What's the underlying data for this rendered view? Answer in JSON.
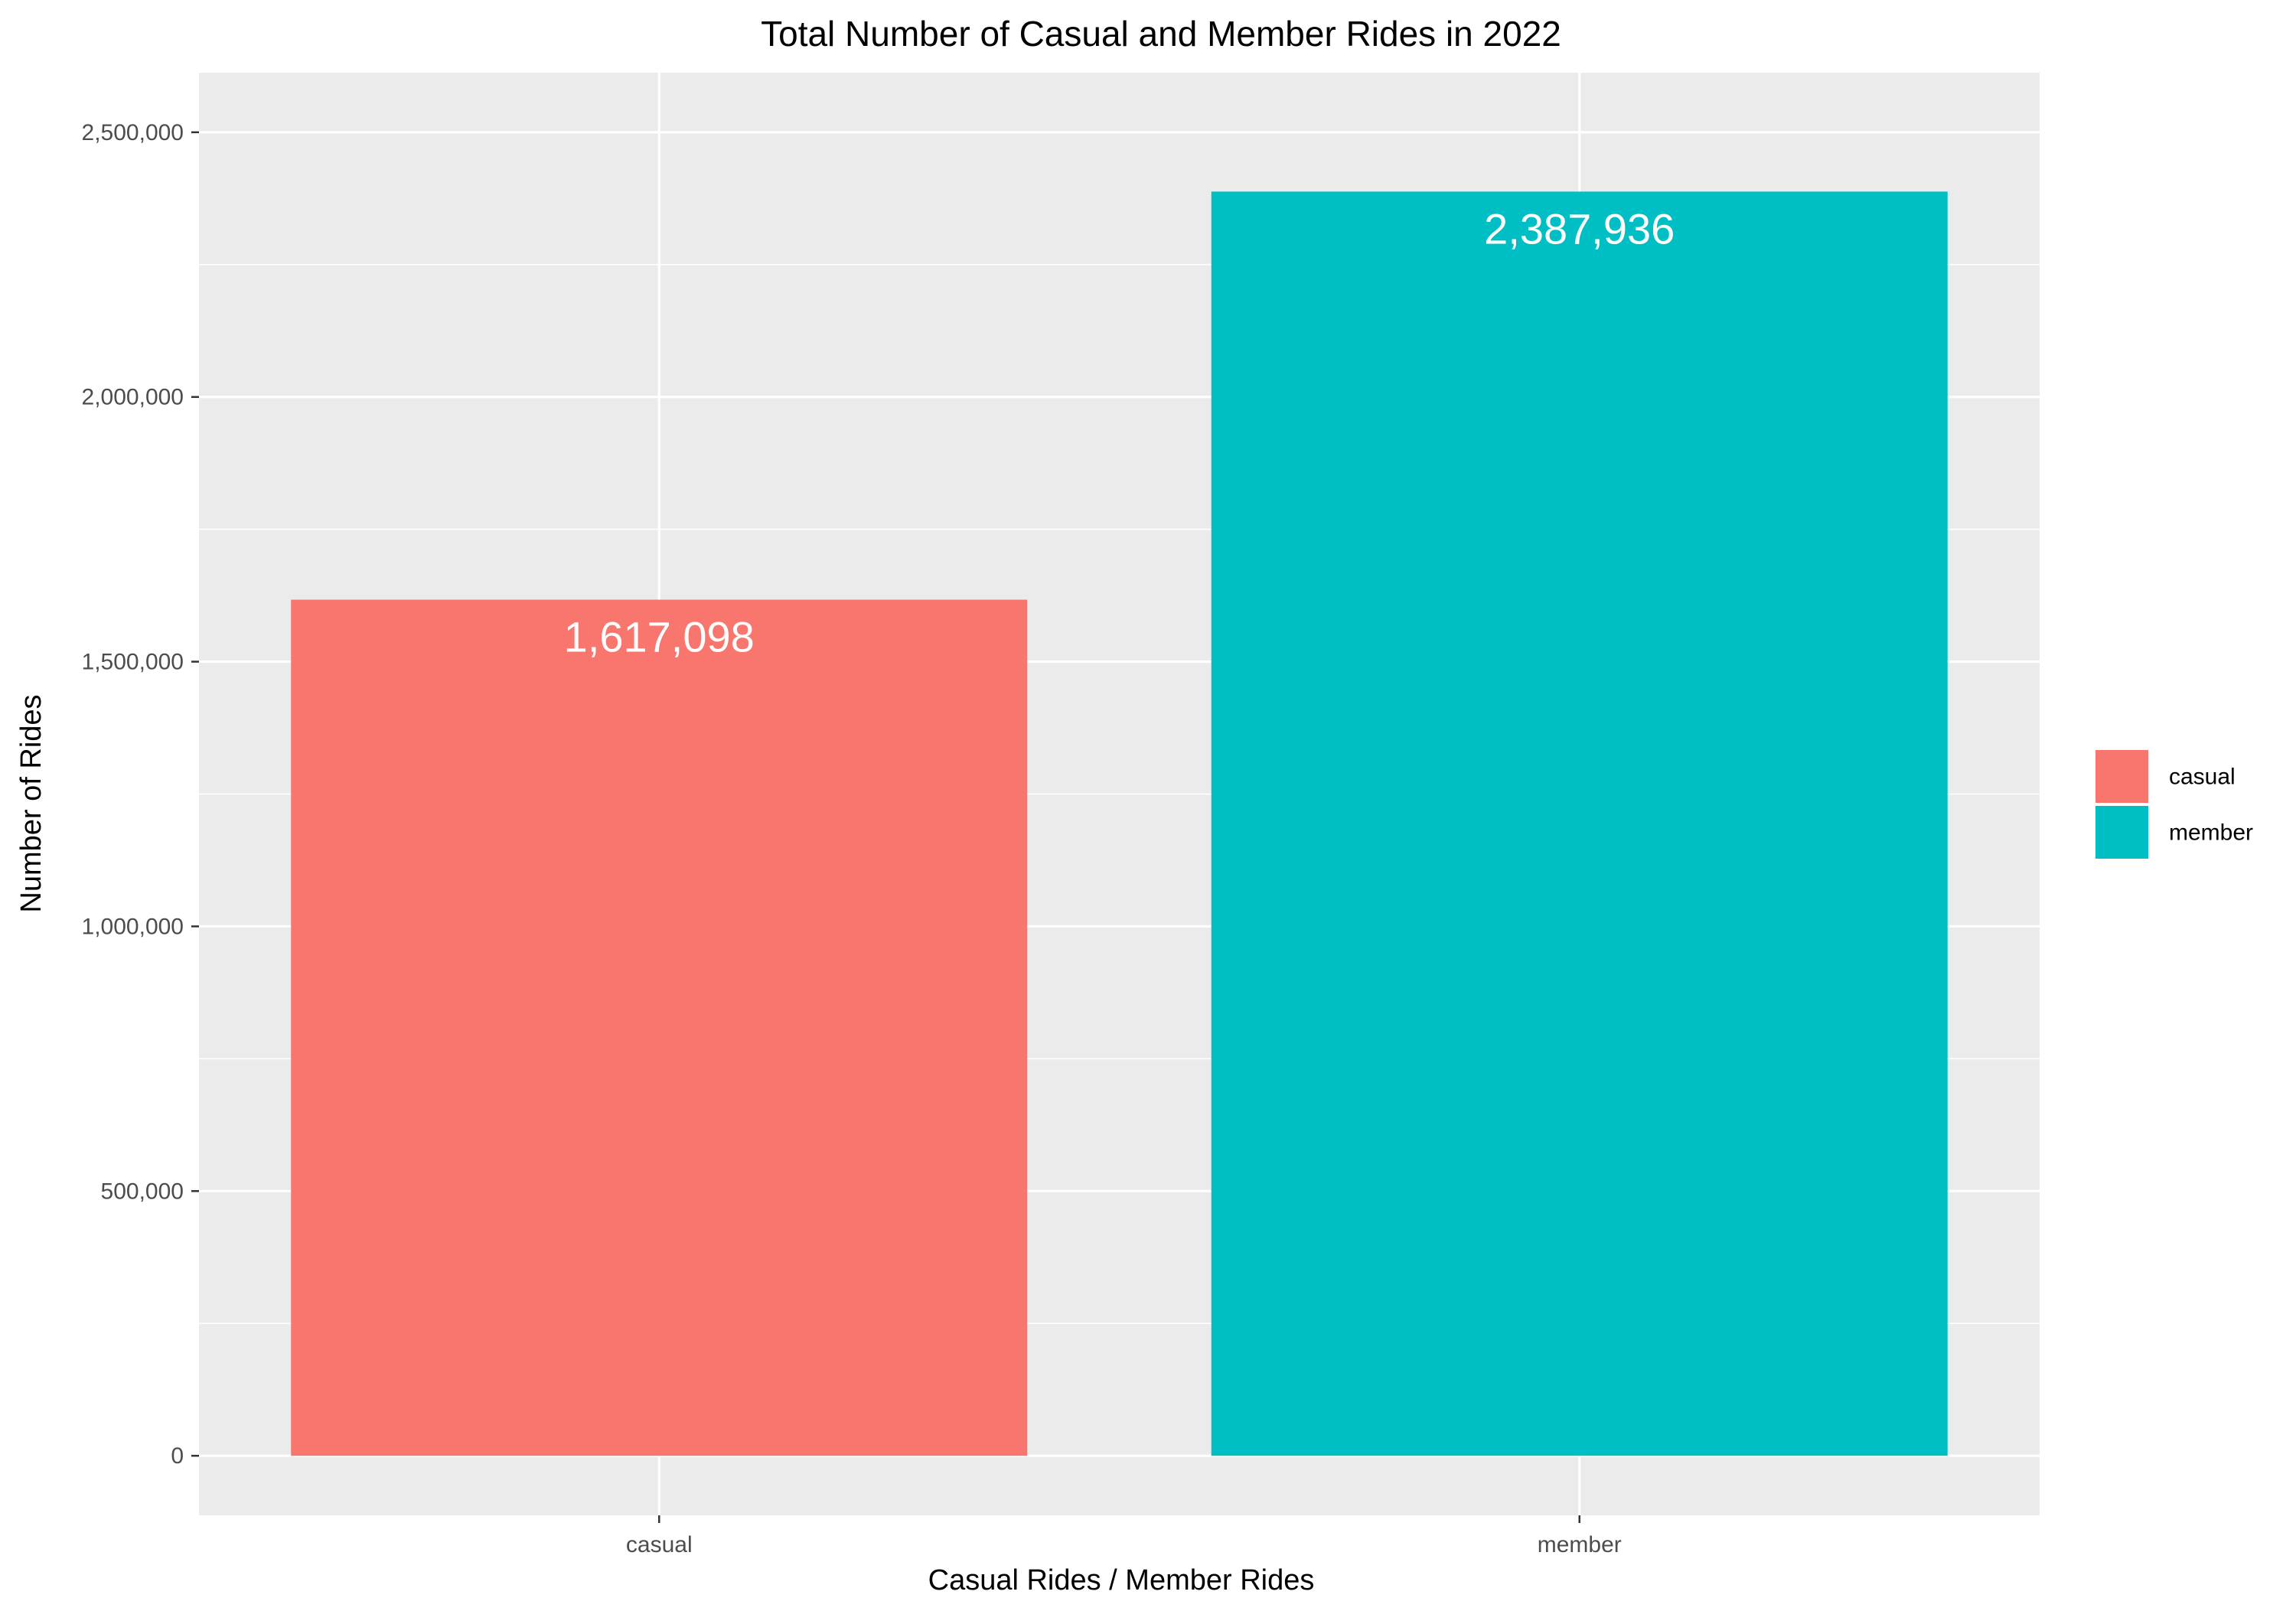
{
  "chart_data": {
    "type": "bar",
    "title": "Total Number of Casual and Member Rides in 2022",
    "xlabel": "Casual Rides / Member Rides",
    "ylabel": "Number of Rides",
    "categories": [
      "casual",
      "member"
    ],
    "values": [
      1617098,
      2387936
    ],
    "data_labels": [
      "1,617,098",
      "2,387,936"
    ],
    "ylim": [
      -112500,
      2612500
    ],
    "y_ticks": [
      0,
      500000,
      1000000,
      1500000,
      2000000,
      2500000
    ],
    "y_tick_labels": [
      "0",
      "500,000",
      "1,000,000",
      "1,500,000",
      "2,000,000",
      "2,500,000"
    ],
    "colors": [
      "#F8766D",
      "#00BFC4"
    ],
    "grid": true,
    "legend": {
      "position": "right",
      "entries": [
        "casual",
        "member"
      ]
    }
  }
}
